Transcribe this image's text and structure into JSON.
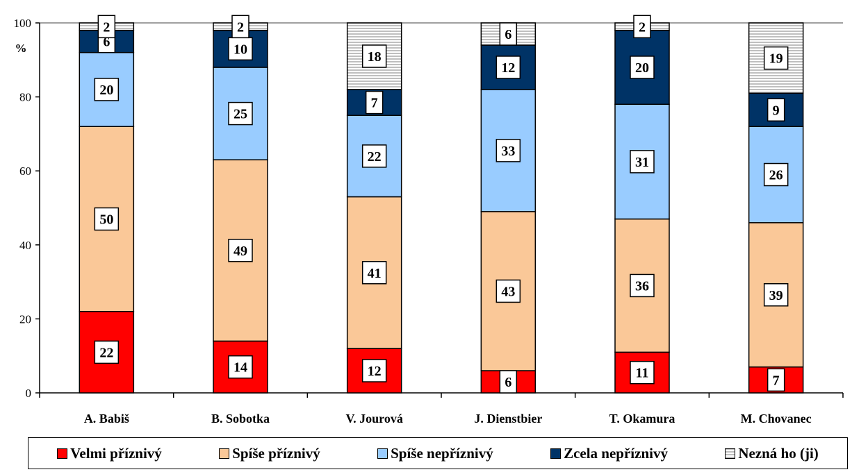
{
  "chart_data": {
    "type": "bar",
    "stacked": true,
    "categories": [
      "A. Babiš",
      "B. Sobotka",
      "V. Jourová",
      "J. Dienstbier",
      "T. Okamura",
      "M. Chovanec"
    ],
    "series": [
      {
        "name": "Velmi příznivý",
        "color": "#ff0000",
        "values": [
          22,
          14,
          12,
          6,
          11,
          7
        ]
      },
      {
        "name": "Spíše příznivý",
        "color": "#fac898",
        "values": [
          50,
          49,
          41,
          43,
          36,
          39
        ]
      },
      {
        "name": "Spíše nepříznivý",
        "color": "#99ccff",
        "values": [
          20,
          25,
          22,
          33,
          31,
          26
        ]
      },
      {
        "name": "Zcela nepříznivý",
        "color": "#003366",
        "values": [
          6,
          10,
          7,
          12,
          20,
          9
        ]
      },
      {
        "name": "Nezná ho (ji)",
        "color": "#ffffff",
        "pattern": "horizontal-stripes",
        "values": [
          2,
          2,
          18,
          6,
          2,
          19
        ]
      }
    ],
    "ylabel": "%",
    "ylim": [
      0,
      100
    ],
    "yticks": [
      0,
      20,
      40,
      60,
      80,
      100
    ],
    "grid": false,
    "legend_position": "bottom"
  }
}
